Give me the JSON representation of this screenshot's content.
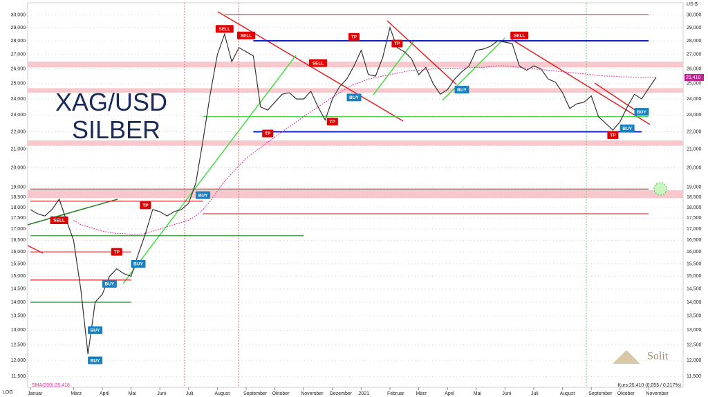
{
  "chart_data": {
    "type": "line",
    "title": "XAG/USD",
    "subtitle": "SILBER",
    "y_unit": "US-$",
    "scale_label": "LOG",
    "log": true,
    "categories": [
      "Januar",
      null,
      null,
      null,
      null,
      null,
      "März",
      null,
      null,
      null,
      "April",
      null,
      null,
      null,
      "Mai",
      null,
      null,
      null,
      "Juni",
      null,
      null,
      null,
      "Juli",
      null,
      null,
      null,
      "August",
      null,
      null,
      null,
      "September",
      null,
      null,
      null,
      "Oktober",
      null,
      null,
      null,
      "November",
      null,
      null,
      null,
      "Dezember",
      null,
      null,
      null,
      "2021",
      null,
      null,
      null,
      "Februar",
      null,
      null,
      null,
      "März",
      null,
      null,
      null,
      "April",
      null,
      null,
      null,
      "Mai",
      null,
      null,
      null,
      "Juni",
      null,
      null,
      null,
      "Juli",
      null,
      null,
      null,
      "August",
      null,
      null,
      null,
      "September",
      null,
      null,
      null,
      "Oktober",
      null,
      null,
      null,
      "November",
      null
    ],
    "series": [
      {
        "name": "Kurs:25,410 (0,055 / 0,217%)",
        "color": "#333333",
        "values": [
          17.9,
          17.7,
          17.6,
          17.9,
          18.4,
          17.4,
          16.5,
          14.5,
          12.2,
          14.0,
          14.3,
          15.0,
          15.3,
          15.1,
          15.0,
          15.9,
          16.8,
          17.9,
          17.8,
          17.6,
          17.8,
          17.9,
          18.2,
          19.2,
          21.5,
          24.3,
          27.0,
          28.5,
          26.5,
          27.5,
          27.2,
          26.9,
          23.5,
          23.3,
          23.8,
          24.3,
          24.4,
          24.0,
          24.0,
          24.5,
          23.5,
          22.7,
          24.0,
          24.8,
          25.3,
          26.2,
          27.3,
          25.6,
          25.5,
          26.8,
          29.0,
          27.5,
          27.2,
          26.7,
          25.6,
          26.1,
          25.0,
          24.3,
          24.6,
          25.3,
          25.8,
          26.2,
          27.3,
          27.4,
          27.6,
          28.0,
          27.9,
          27.8,
          26.2,
          25.9,
          26.2,
          26.0,
          25.3,
          25.1,
          24.4,
          23.4,
          23.7,
          23.8,
          24.2,
          22.9,
          22.5,
          22.1,
          22.6,
          23.5,
          24.3,
          24.0,
          24.7,
          25.41
        ]
      },
      {
        "name": "SMA(200):25,418",
        "color": "#e0309c",
        "values": [
          null,
          null,
          null,
          null,
          null,
          null,
          17.4,
          17.2,
          17.1,
          17.0,
          16.9,
          16.85,
          16.8,
          16.8,
          16.75,
          16.75,
          16.8,
          16.9,
          17.0,
          17.1,
          17.2,
          17.3,
          17.4,
          17.6,
          17.9,
          18.3,
          18.8,
          19.3,
          19.7,
          20.1,
          20.5,
          20.8,
          21.1,
          21.4,
          21.7,
          22.0,
          22.3,
          22.6,
          22.9,
          23.2,
          23.5,
          23.8,
          24.1,
          24.4,
          24.7,
          24.95,
          25.1,
          25.3,
          25.4,
          25.5,
          25.6,
          25.7,
          25.8,
          25.9,
          25.9,
          25.95,
          26.0,
          26.0,
          26.0,
          26.0,
          26.05,
          26.1,
          26.1,
          26.1,
          26.15,
          26.2,
          26.2,
          26.15,
          26.1,
          26.05,
          26.0,
          25.95,
          25.9,
          25.85,
          25.8,
          25.75,
          25.7,
          25.65,
          25.6,
          25.55,
          25.5,
          25.5,
          25.45,
          25.45,
          25.42,
          25.42,
          25.42,
          25.418
        ]
      }
    ],
    "last_price": 25.41,
    "last_price_label": "25,410",
    "ylim": [
      11.4,
      30.3
    ],
    "yticks": [
      {
        "value": 11.5,
        "label": "11,500"
      },
      {
        "value": 12,
        "label": "12,000"
      },
      {
        "value": 12.5,
        "label": "12,500"
      },
      {
        "value": 13,
        "label": "13,000"
      },
      {
        "value": 13.5,
        "label": "13,500"
      },
      {
        "value": 14,
        "label": "14,000"
      },
      {
        "value": 14.5,
        "label": "14,500"
      },
      {
        "value": 15,
        "label": "15,000"
      },
      {
        "value": 15.5,
        "label": "15,500"
      },
      {
        "value": 16,
        "label": "16,000"
      },
      {
        "value": 16.5,
        "label": "16,500"
      },
      {
        "value": 17,
        "label": "17,000"
      },
      {
        "value": 17.5,
        "label": "17,500"
      },
      {
        "value": 18,
        "label": "18,000"
      },
      {
        "value": 18.5,
        "label": "18,500"
      },
      {
        "value": 19,
        "label": "19,000"
      },
      {
        "value": 20,
        "label": "20,000"
      },
      {
        "value": 21,
        "label": "21,000"
      },
      {
        "value": 22,
        "label": "22,000"
      },
      {
        "value": 23,
        "label": "23,000"
      },
      {
        "value": 24,
        "label": "24,000"
      },
      {
        "value": 25,
        "label": "25,000"
      },
      {
        "value": 26,
        "label": "26,000"
      },
      {
        "value": 27,
        "label": "27,000"
      },
      {
        "value": 28,
        "label": "28,000"
      },
      {
        "value": 29,
        "label": "29,000"
      },
      {
        "value": 30,
        "label": "30,000"
      }
    ],
    "grid": true,
    "levels": [
      {
        "value": 30,
        "color": "#e02020"
      },
      {
        "value": 28,
        "color": "#1020d0"
      },
      {
        "value": 22.9,
        "color": "#30d030"
      },
      {
        "value": 22,
        "color": "#1020d0"
      },
      {
        "value": 18.9,
        "color": "#e02020"
      },
      {
        "value": 18.3,
        "color": "#e02020"
      },
      {
        "value": 17.7,
        "color": "#e02020"
      },
      {
        "value": 16.7,
        "color": "#208020"
      },
      {
        "value": 16,
        "color": "#e02020"
      },
      {
        "value": 14.85,
        "color": "#e02020"
      },
      {
        "value": 14,
        "color": "#208020"
      }
    ],
    "bands": [
      [
        26.1,
        26.5
      ],
      [
        24.4,
        24.7
      ],
      [
        21.2,
        21.5
      ],
      [
        18.45,
        18.85
      ]
    ],
    "signal_colors": {
      "SELL": "#e00000",
      "BUY": "#1a7fc0",
      "TP": "#e00000"
    },
    "signals": [
      {
        "label": "SELL",
        "at": 4,
        "value": 17.4
      },
      {
        "label": "BUY",
        "at": 9,
        "value": 12.0
      },
      {
        "label": "BUY",
        "at": 9,
        "value": 13.0
      },
      {
        "label": "BUY",
        "at": 11,
        "value": 14.7
      },
      {
        "label": "TP",
        "at": 12,
        "value": 16.0
      },
      {
        "label": "BUY",
        "at": 15,
        "value": 15.5
      },
      {
        "label": "TP",
        "at": 16,
        "value": 18.1
      },
      {
        "label": "BUY",
        "at": 24,
        "value": 18.6
      },
      {
        "label": "SELL",
        "at": 27,
        "value": 28.9
      },
      {
        "label": "SELL",
        "at": 30,
        "value": 28.4
      },
      {
        "label": "TP",
        "at": 33,
        "value": 21.9
      },
      {
        "label": "SELL",
        "at": 40,
        "value": 26.4
      },
      {
        "label": "TP",
        "at": 42,
        "value": 22.6
      },
      {
        "label": "BUY",
        "at": 45,
        "value": 24.1
      },
      {
        "label": "TP",
        "at": 45,
        "value": 28.3
      },
      {
        "label": "TP",
        "at": 51,
        "value": 27.8
      },
      {
        "label": "BUY",
        "at": 60,
        "value": 24.6
      },
      {
        "label": "SELL",
        "at": 68,
        "value": 28.4
      },
      {
        "label": "TP",
        "at": 81,
        "value": 21.8
      },
      {
        "label": "BUY",
        "at": 83,
        "value": 22.2
      },
      {
        "label": "BUY",
        "at": 85,
        "value": 23.2
      }
    ],
    "brand": "Solit"
  }
}
